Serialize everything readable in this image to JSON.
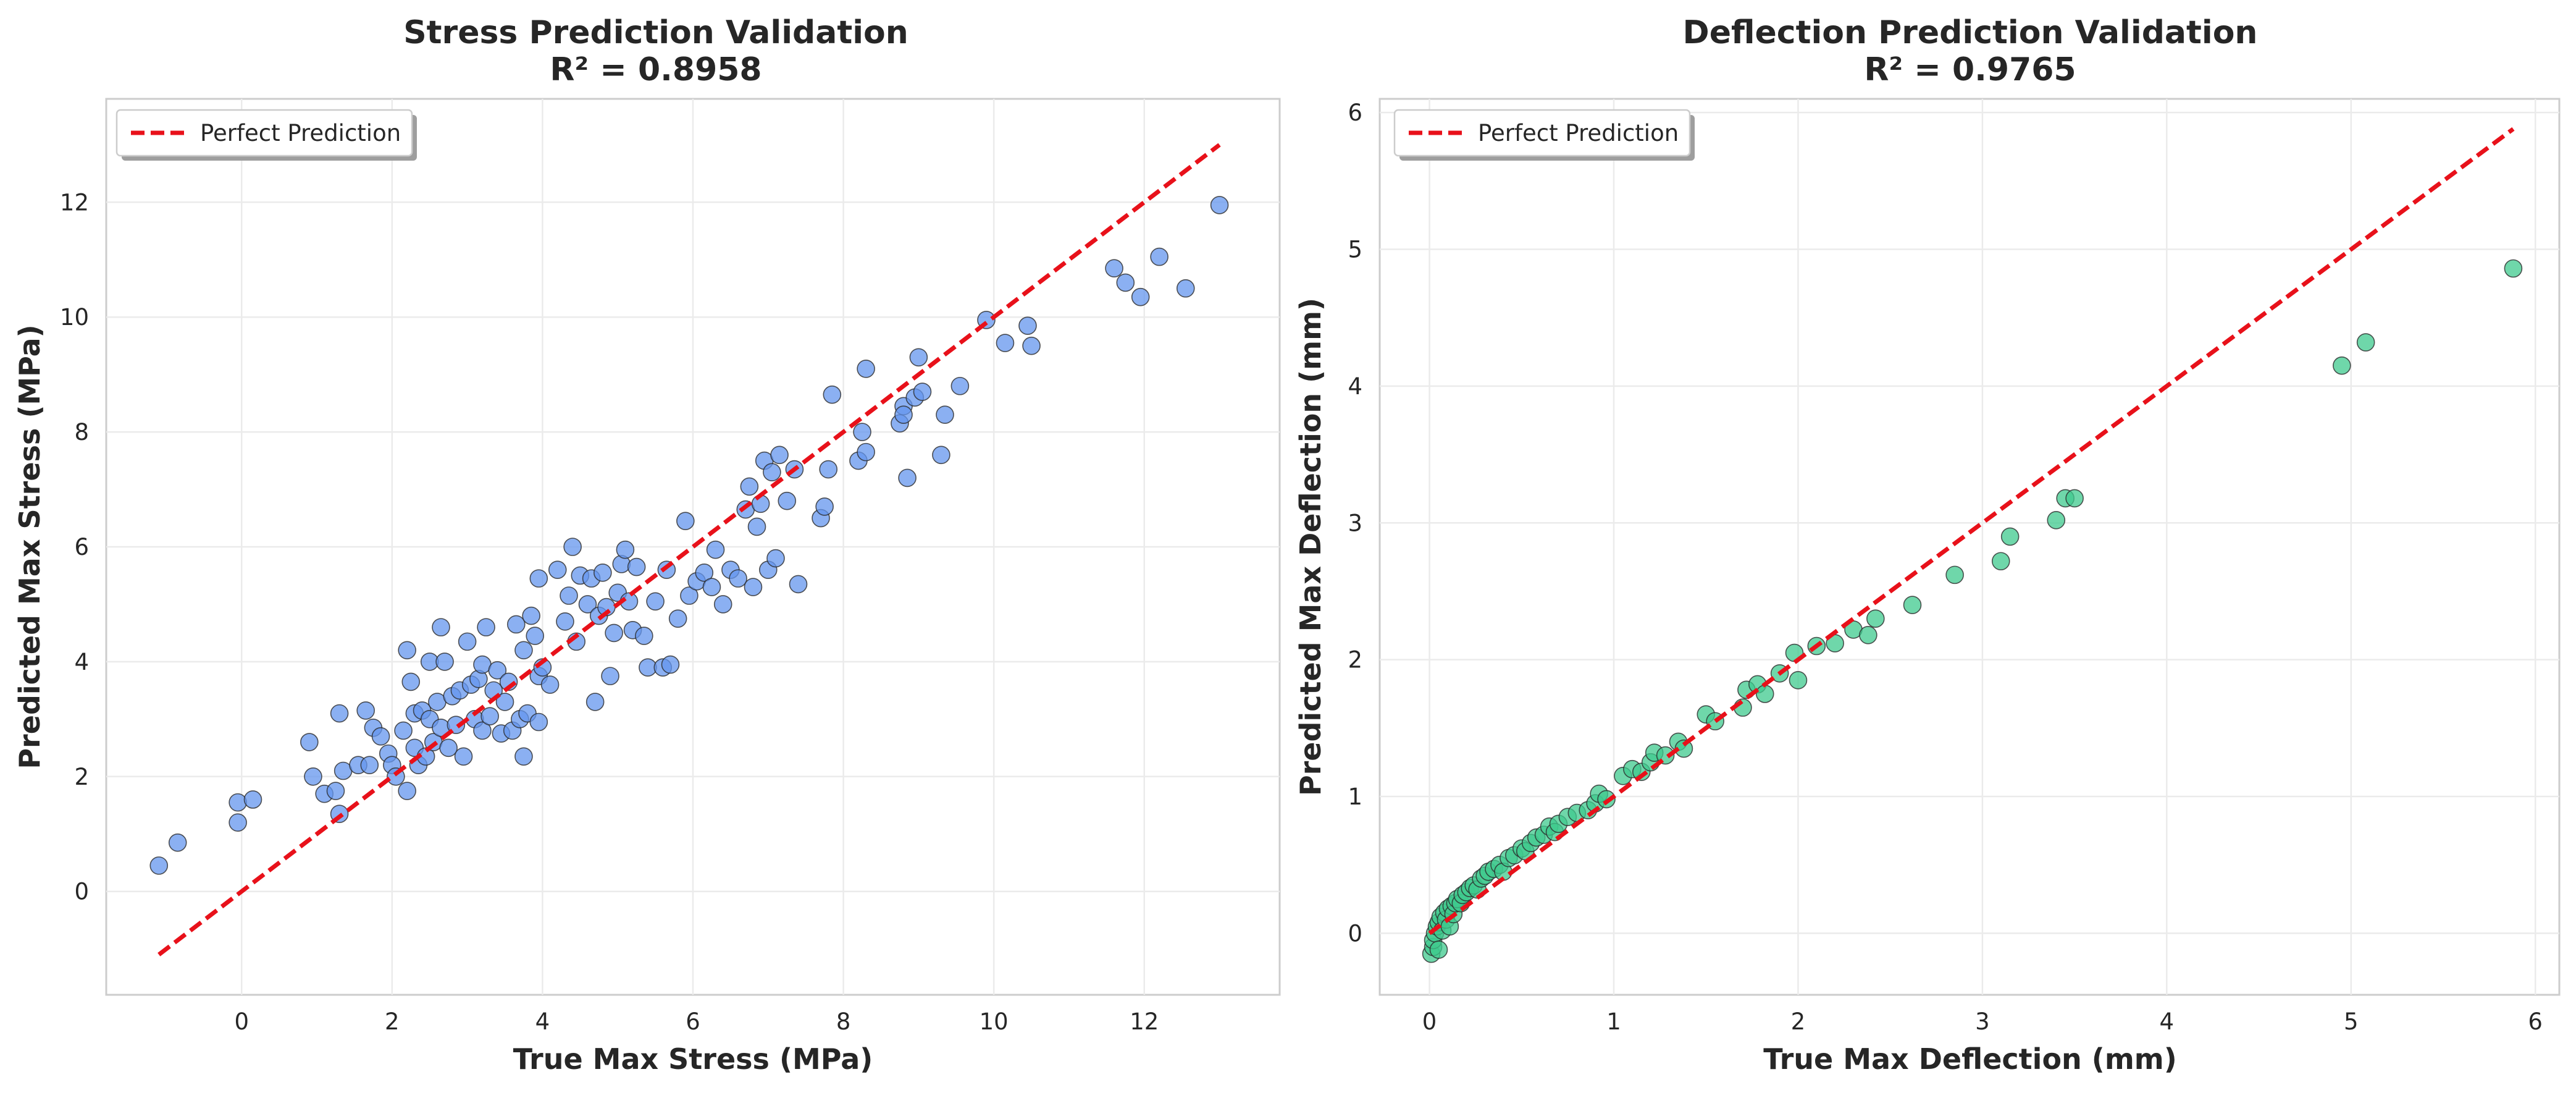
{
  "chart_data": [
    {
      "type": "scatter",
      "title": "Stress Prediction Validation",
      "subtitle": "R² = 0.8958",
      "xlabel": "True Max Stress (MPa)",
      "ylabel": "Predicted Max Stress (MPa)",
      "xlim": [
        -1.8,
        13.8
      ],
      "ylim": [
        -1.8,
        13.8
      ],
      "xticks": [
        0,
        2,
        4,
        6,
        8,
        10,
        12
      ],
      "yticks": [
        0,
        2,
        4,
        6,
        8,
        10,
        12
      ],
      "grid": true,
      "legend": {
        "position": "top-left",
        "entries": [
          "Perfect Prediction"
        ]
      },
      "reference_line": {
        "name": "Perfect Prediction",
        "color": "#e8111a",
        "x": [
          -1.1,
          13.0
        ],
        "y": [
          -1.1,
          13.0
        ]
      },
      "point_color": "#6495ed",
      "series": [
        {
          "values": [
            [
              -1.1,
              0.45
            ],
            [
              -0.85,
              0.85
            ],
            [
              -0.05,
              1.2
            ],
            [
              -0.05,
              1.55
            ],
            [
              0.15,
              1.6
            ],
            [
              0.9,
              2.6
            ],
            [
              0.95,
              2.0
            ],
            [
              1.1,
              1.7
            ],
            [
              1.25,
              1.75
            ],
            [
              1.3,
              1.35
            ],
            [
              1.3,
              3.1
            ],
            [
              1.35,
              2.1
            ],
            [
              1.55,
              2.2
            ],
            [
              1.65,
              3.15
            ],
            [
              1.7,
              2.2
            ],
            [
              1.75,
              2.85
            ],
            [
              1.85,
              2.7
            ],
            [
              1.95,
              2.4
            ],
            [
              2.0,
              2.2
            ],
            [
              2.05,
              2.0
            ],
            [
              2.15,
              2.8
            ],
            [
              2.2,
              1.75
            ],
            [
              2.2,
              4.2
            ],
            [
              2.25,
              3.65
            ],
            [
              2.3,
              3.1
            ],
            [
              2.3,
              2.5
            ],
            [
              2.35,
              2.2
            ],
            [
              2.4,
              3.15
            ],
            [
              2.45,
              2.35
            ],
            [
              2.5,
              3.0
            ],
            [
              2.5,
              4.0
            ],
            [
              2.55,
              2.6
            ],
            [
              2.6,
              3.3
            ],
            [
              2.65,
              4.6
            ],
            [
              2.65,
              2.85
            ],
            [
              2.7,
              4.0
            ],
            [
              2.75,
              2.5
            ],
            [
              2.8,
              3.4
            ],
            [
              2.85,
              2.9
            ],
            [
              2.9,
              3.5
            ],
            [
              2.95,
              2.35
            ],
            [
              3.0,
              4.35
            ],
            [
              3.05,
              3.6
            ],
            [
              3.1,
              3.0
            ],
            [
              3.15,
              3.7
            ],
            [
              3.2,
              2.8
            ],
            [
              3.2,
              3.95
            ],
            [
              3.25,
              4.6
            ],
            [
              3.3,
              3.05
            ],
            [
              3.35,
              3.5
            ],
            [
              3.4,
              3.85
            ],
            [
              3.45,
              2.75
            ],
            [
              3.5,
              3.3
            ],
            [
              3.55,
              3.65
            ],
            [
              3.6,
              2.8
            ],
            [
              3.65,
              4.65
            ],
            [
              3.7,
              3.0
            ],
            [
              3.75,
              2.35
            ],
            [
              3.75,
              4.2
            ],
            [
              3.8,
              3.1
            ],
            [
              3.85,
              4.8
            ],
            [
              3.9,
              4.45
            ],
            [
              3.95,
              3.75
            ],
            [
              3.95,
              2.95
            ],
            [
              3.95,
              5.45
            ],
            [
              4.0,
              3.9
            ],
            [
              4.1,
              3.6
            ],
            [
              4.2,
              5.6
            ],
            [
              4.3,
              4.7
            ],
            [
              4.35,
              5.15
            ],
            [
              4.4,
              6.0
            ],
            [
              4.45,
              4.35
            ],
            [
              4.5,
              5.5
            ],
            [
              4.6,
              5.0
            ],
            [
              4.65,
              5.45
            ],
            [
              4.7,
              3.3
            ],
            [
              4.75,
              4.8
            ],
            [
              4.8,
              5.55
            ],
            [
              4.85,
              4.95
            ],
            [
              4.9,
              3.75
            ],
            [
              4.95,
              4.5
            ],
            [
              5.0,
              5.2
            ],
            [
              5.05,
              5.7
            ],
            [
              5.1,
              5.95
            ],
            [
              5.15,
              5.05
            ],
            [
              5.2,
              4.55
            ],
            [
              5.25,
              5.65
            ],
            [
              5.35,
              4.45
            ],
            [
              5.4,
              3.9
            ],
            [
              5.5,
              5.05
            ],
            [
              5.6,
              3.9
            ],
            [
              5.65,
              5.6
            ],
            [
              5.7,
              3.95
            ],
            [
              5.8,
              4.75
            ],
            [
              5.9,
              6.45
            ],
            [
              5.95,
              5.15
            ],
            [
              6.05,
              5.4
            ],
            [
              6.15,
              5.55
            ],
            [
              6.25,
              5.3
            ],
            [
              6.3,
              5.95
            ],
            [
              6.4,
              5.0
            ],
            [
              6.5,
              5.6
            ],
            [
              6.6,
              5.45
            ],
            [
              6.7,
              6.65
            ],
            [
              6.75,
              7.05
            ],
            [
              6.8,
              5.3
            ],
            [
              6.85,
              6.35
            ],
            [
              6.9,
              6.75
            ],
            [
              6.95,
              7.5
            ],
            [
              7.0,
              5.6
            ],
            [
              7.05,
              7.3
            ],
            [
              7.1,
              5.8
            ],
            [
              7.15,
              7.6
            ],
            [
              7.25,
              6.8
            ],
            [
              7.35,
              7.35
            ],
            [
              7.4,
              5.35
            ],
            [
              7.7,
              6.5
            ],
            [
              7.75,
              6.7
            ],
            [
              7.8,
              7.35
            ],
            [
              7.85,
              8.65
            ],
            [
              8.2,
              7.5
            ],
            [
              8.25,
              8.0
            ],
            [
              8.3,
              7.65
            ],
            [
              8.3,
              9.1
            ],
            [
              8.75,
              8.15
            ],
            [
              8.8,
              8.45
            ],
            [
              8.8,
              8.3
            ],
            [
              8.85,
              7.2
            ],
            [
              8.95,
              8.6
            ],
            [
              9.0,
              9.3
            ],
            [
              9.05,
              8.7
            ],
            [
              9.3,
              7.6
            ],
            [
              9.35,
              8.3
            ],
            [
              9.55,
              8.8
            ],
            [
              9.9,
              9.95
            ],
            [
              10.15,
              9.55
            ],
            [
              10.45,
              9.85
            ],
            [
              10.5,
              9.5
            ],
            [
              11.6,
              10.85
            ],
            [
              11.75,
              10.6
            ],
            [
              11.95,
              10.35
            ],
            [
              12.2,
              11.05
            ],
            [
              12.55,
              10.5
            ],
            [
              13.0,
              11.95
            ]
          ]
        }
      ]
    },
    {
      "type": "scatter",
      "title": "Deflection Prediction Validation",
      "subtitle": "R² = 0.9765",
      "xlabel": "True Max Deflection (mm)",
      "ylabel": "Predicted Max Deflection (mm)",
      "xlim": [
        -0.27,
        6.13
      ],
      "ylim": [
        -0.45,
        6.1
      ],
      "xticks": [
        0,
        1,
        2,
        3,
        4,
        5,
        6
      ],
      "yticks": [
        0,
        1,
        2,
        3,
        4,
        5,
        6
      ],
      "grid": true,
      "legend": {
        "position": "top-left",
        "entries": [
          "Perfect Prediction"
        ]
      },
      "reference_line": {
        "name": "Perfect Prediction",
        "color": "#e8111a",
        "x": [
          0.0,
          5.88
        ],
        "y": [
          0.0,
          5.88
        ]
      },
      "point_color": "#3fc98e",
      "series": [
        {
          "values": [
            [
              0.01,
              -0.15
            ],
            [
              0.02,
              -0.1
            ],
            [
              0.02,
              -0.05
            ],
            [
              0.03,
              0.0
            ],
            [
              0.04,
              0.05
            ],
            [
              0.05,
              -0.12
            ],
            [
              0.05,
              0.08
            ],
            [
              0.06,
              0.12
            ],
            [
              0.07,
              0.02
            ],
            [
              0.08,
              0.15
            ],
            [
              0.09,
              0.1
            ],
            [
              0.1,
              0.18
            ],
            [
              0.11,
              0.05
            ],
            [
              0.12,
              0.2
            ],
            [
              0.13,
              0.14
            ],
            [
              0.14,
              0.22
            ],
            [
              0.15,
              0.25
            ],
            [
              0.17,
              0.22
            ],
            [
              0.18,
              0.28
            ],
            [
              0.2,
              0.3
            ],
            [
              0.22,
              0.33
            ],
            [
              0.24,
              0.35
            ],
            [
              0.26,
              0.32
            ],
            [
              0.28,
              0.4
            ],
            [
              0.3,
              0.42
            ],
            [
              0.32,
              0.45
            ],
            [
              0.35,
              0.47
            ],
            [
              0.38,
              0.5
            ],
            [
              0.4,
              0.45
            ],
            [
              0.43,
              0.55
            ],
            [
              0.46,
              0.57
            ],
            [
              0.5,
              0.62
            ],
            [
              0.52,
              0.6
            ],
            [
              0.55,
              0.66
            ],
            [
              0.58,
              0.7
            ],
            [
              0.62,
              0.72
            ],
            [
              0.65,
              0.78
            ],
            [
              0.68,
              0.74
            ],
            [
              0.7,
              0.8
            ],
            [
              0.75,
              0.85
            ],
            [
              0.8,
              0.88
            ],
            [
              0.86,
              0.9
            ],
            [
              0.9,
              0.95
            ],
            [
              0.92,
              1.02
            ],
            [
              0.96,
              0.98
            ],
            [
              1.05,
              1.15
            ],
            [
              1.1,
              1.2
            ],
            [
              1.15,
              1.18
            ],
            [
              1.2,
              1.25
            ],
            [
              1.22,
              1.32
            ],
            [
              1.28,
              1.3
            ],
            [
              1.35,
              1.4
            ],
            [
              1.38,
              1.35
            ],
            [
              1.5,
              1.6
            ],
            [
              1.55,
              1.55
            ],
            [
              1.7,
              1.65
            ],
            [
              1.72,
              1.78
            ],
            [
              1.78,
              1.82
            ],
            [
              1.82,
              1.75
            ],
            [
              1.9,
              1.9
            ],
            [
              1.98,
              2.05
            ],
            [
              2.0,
              1.85
            ],
            [
              2.1,
              2.1
            ],
            [
              2.2,
              2.12
            ],
            [
              2.3,
              2.22
            ],
            [
              2.38,
              2.18
            ],
            [
              2.42,
              2.3
            ],
            [
              2.62,
              2.4
            ],
            [
              2.85,
              2.62
            ],
            [
              3.1,
              2.72
            ],
            [
              3.15,
              2.9
            ],
            [
              3.4,
              3.02
            ],
            [
              3.45,
              3.18
            ],
            [
              3.5,
              3.18
            ],
            [
              4.95,
              4.15
            ],
            [
              5.08,
              4.32
            ],
            [
              5.88,
              4.86
            ]
          ]
        }
      ]
    }
  ]
}
